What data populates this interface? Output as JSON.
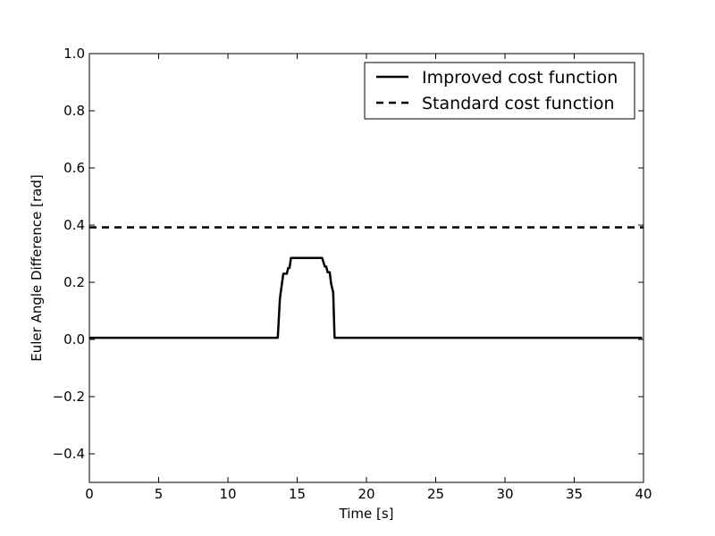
{
  "chart_data": {
    "type": "line",
    "title": "",
    "xlabel": "Time [s]",
    "ylabel": "Euler Angle Difference [rad]",
    "xlim": [
      0,
      40
    ],
    "ylim": [
      -0.5,
      1.0
    ],
    "x_ticks": [
      0,
      5,
      10,
      15,
      20,
      25,
      30,
      35,
      40
    ],
    "y_ticks": [
      -0.4,
      -0.2,
      0.0,
      0.2,
      0.4,
      0.6,
      0.8,
      1.0
    ],
    "x_tick_labels": [
      "0",
      "5",
      "10",
      "15",
      "20",
      "25",
      "30",
      "35",
      "40"
    ],
    "y_tick_labels": [
      "−0.4",
      "−0.2",
      "0.0",
      "0.2",
      "0.4",
      "0.6",
      "0.8",
      "1.0"
    ],
    "grid": false,
    "legend_position": "top-right",
    "series": [
      {
        "name": "Improved cost function",
        "style": "solid",
        "color": "#000000",
        "points": [
          [
            0,
            0.006
          ],
          [
            13.6,
            0.006
          ],
          [
            13.75,
            0.14
          ],
          [
            13.8,
            0.16
          ],
          [
            14.0,
            0.23
          ],
          [
            14.25,
            0.23
          ],
          [
            14.35,
            0.25
          ],
          [
            14.45,
            0.25
          ],
          [
            14.55,
            0.285
          ],
          [
            16.8,
            0.285
          ],
          [
            17.0,
            0.255
          ],
          [
            17.1,
            0.255
          ],
          [
            17.2,
            0.235
          ],
          [
            17.35,
            0.235
          ],
          [
            17.45,
            0.195
          ],
          [
            17.6,
            0.165
          ],
          [
            17.7,
            0.006
          ],
          [
            39.9,
            0.006
          ]
        ]
      },
      {
        "name": "Standard cost function",
        "style": "dashed",
        "color": "#000000",
        "points": [
          [
            0,
            0.392
          ],
          [
            40,
            0.392
          ]
        ]
      }
    ]
  }
}
